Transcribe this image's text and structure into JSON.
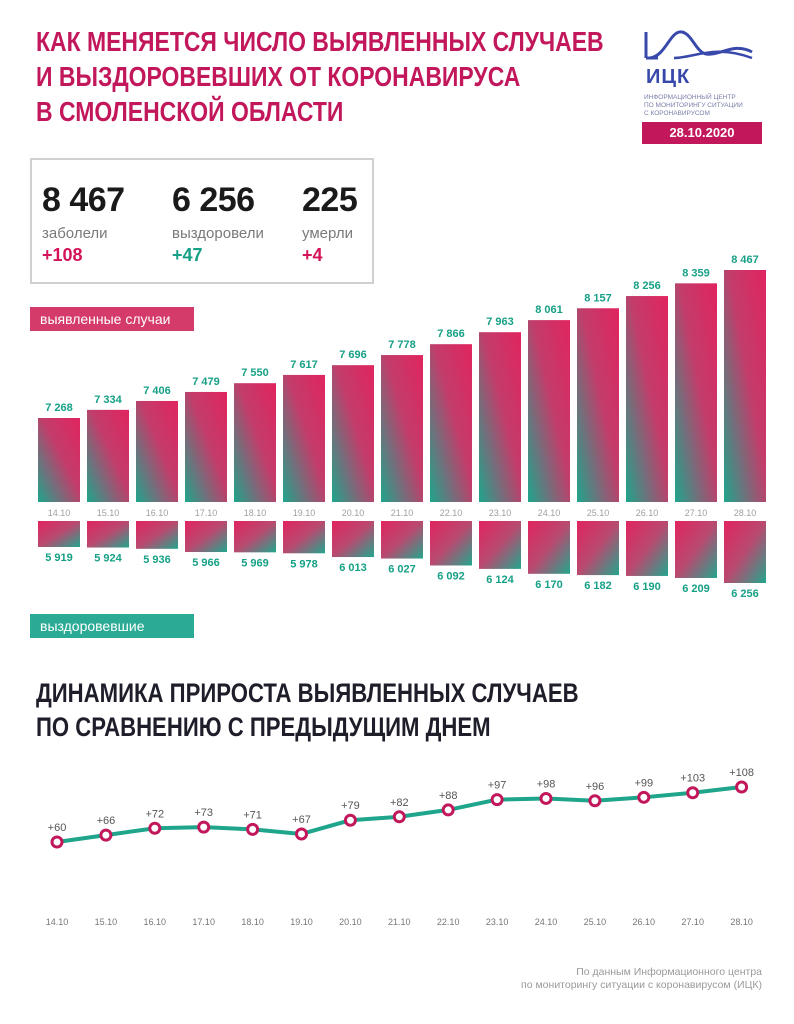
{
  "header": {
    "title_lines": [
      "КАК МЕНЯЕТСЯ ЧИСЛО ВЫЯВЛЕННЫХ СЛУЧАЕВ",
      "И ВЫЗДОРОВЕВШИХ ОТ КОРОНАВИРУСА",
      "В СМОЛЕНСКОЙ ОБЛАСТИ"
    ]
  },
  "logo": {
    "name": "ИЦК",
    "subtitle_lines": [
      "ИНФОРМАЦИОННЫЙ ЦЕНТР",
      "ПО МОНИТОРИНГУ СИТУАЦИИ",
      "С КОРОНАВИРУСОМ"
    ],
    "date": "28.10.2020",
    "icon": "icc-logo-icon"
  },
  "summary": {
    "cases": {
      "value": "8 467",
      "label": "заболели",
      "delta": "+108"
    },
    "recovered": {
      "value": "6 256",
      "label": "выздоровели",
      "delta": "+47"
    },
    "deaths": {
      "value": "225",
      "label": "умерли",
      "delta": "+4"
    }
  },
  "legend": {
    "cases_label": "выявленные случаи",
    "recovered_label": "выздоровевшие"
  },
  "colors": {
    "pink": "#d4145a",
    "teal": "#16a085",
    "title": "#c2185b",
    "logo": "#3949ab"
  },
  "subtitle_lines": [
    "ДИНАМИКА ПРИРОСТА ВЫЯВЛЕННЫХ СЛУЧАЕВ",
    "ПО СРАВНЕНИЮ С ПРЕДЫДУЩИМ ДНЕМ"
  ],
  "source_lines": [
    "По данным Информационного центра",
    "по мониторингу ситуации с коронавирусом (ИЦК)"
  ],
  "chart_data": [
    {
      "type": "bar",
      "categories": [
        "14.10",
        "15.10",
        "16.10",
        "17.10",
        "18.10",
        "19.10",
        "20.10",
        "21.10",
        "22.10",
        "23.10",
        "24.10",
        "25.10",
        "26.10",
        "27.10",
        "28.10"
      ],
      "series": [
        {
          "name": "выявленные случаи",
          "values": [
            7268,
            7334,
            7406,
            7479,
            7550,
            7617,
            7696,
            7778,
            7866,
            7963,
            8061,
            8157,
            8256,
            8359,
            8467
          ],
          "labels": [
            "7 268",
            "7 334",
            "7 406",
            "7 479",
            "7 550",
            "7 617",
            "7 696",
            "7 778",
            "7 866",
            "7 963",
            "8 061",
            "8 157",
            "8 256",
            "8 359",
            "8 467"
          ]
        },
        {
          "name": "выздоровевшие",
          "values": [
            5919,
            5924,
            5936,
            5966,
            5969,
            5978,
            6013,
            6027,
            6092,
            6124,
            6170,
            6182,
            6190,
            6209,
            6256
          ],
          "labels": [
            "5 919",
            "5 924",
            "5 936",
            "5 966",
            "5 969",
            "5 978",
            "6 013",
            "6 027",
            "6 092",
            "6 124",
            "6 170",
            "6 182",
            "6 190",
            "6 209",
            "6 256"
          ]
        }
      ],
      "legend": "top-left"
    },
    {
      "type": "line",
      "title": "ДИНАМИКА ПРИРОСТА ВЫЯВЛЕННЫХ СЛУЧАЕВ ПО СРАВНЕНИЮ С ПРЕДЫДУЩИМ ДНЕМ",
      "categories": [
        "14.10",
        "15.10",
        "16.10",
        "17.10",
        "18.10",
        "19.10",
        "20.10",
        "21.10",
        "22.10",
        "23.10",
        "24.10",
        "25.10",
        "26.10",
        "27.10",
        "28.10"
      ],
      "series": [
        {
          "values": [
            60,
            66,
            72,
            73,
            71,
            67,
            79,
            82,
            88,
            97,
            98,
            96,
            99,
            103,
            108
          ],
          "labels": [
            "+60",
            "+66",
            "+72",
            "+73",
            "+71",
            "+67",
            "+79",
            "+82",
            "+88",
            "+97",
            "+98",
            "+96",
            "+99",
            "+103",
            "+108"
          ]
        }
      ]
    }
  ]
}
